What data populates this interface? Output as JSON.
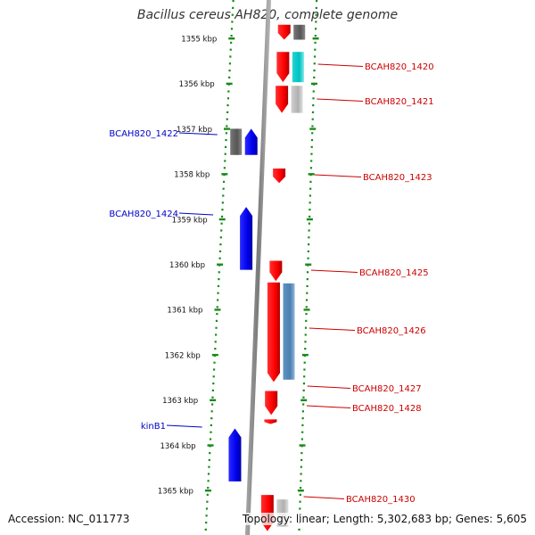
{
  "title": "Bacillus cereus AH820, complete genome",
  "accession": "Accession: NC_011773",
  "summary": "Topology: linear; Length: 5,302,683 bp; Genes: 5,605",
  "colors": {
    "forward_label": "#cc0000",
    "reverse_label": "#0000cc",
    "forward_gene": "#ff0000",
    "reverse_gene": "#0000ee",
    "dots": "#1a8a1a",
    "backbone": "#888888"
  },
  "ticks": [
    {
      "label": "1355 kbp",
      "pos": 1355
    },
    {
      "label": "1356 kbp",
      "pos": 1356
    },
    {
      "label": "1357 kbp",
      "pos": 1357
    },
    {
      "label": "1358 kbp",
      "pos": 1358
    },
    {
      "label": "1359 kbp",
      "pos": 1359
    },
    {
      "label": "1360 kbp",
      "pos": 1360
    },
    {
      "label": "1361 kbp",
      "pos": 1361
    },
    {
      "label": "1362 kbp",
      "pos": 1362
    },
    {
      "label": "1363 kbp",
      "pos": 1363
    },
    {
      "label": "1364 kbp",
      "pos": 1364
    },
    {
      "label": "1365 kbp",
      "pos": 1365
    }
  ],
  "genes": [
    {
      "strand": "+",
      "start": 1354.7,
      "end": 1355.03,
      "label": ""
    },
    {
      "strand": "+",
      "start": 1355.3,
      "end": 1355.97,
      "label": "BCAH820_1420"
    },
    {
      "strand": "+",
      "start": 1356.05,
      "end": 1356.65,
      "label": "BCAH820_1421"
    },
    {
      "strand": "-",
      "start": 1357.0,
      "end": 1357.58,
      "label": "BCAH820_1422"
    },
    {
      "strand": "+",
      "start": 1357.88,
      "end": 1358.2,
      "label": "BCAH820_1423"
    },
    {
      "strand": "-",
      "start": 1358.73,
      "end": 1360.12,
      "label": "BCAH820_1424"
    },
    {
      "strand": "+",
      "start": 1359.92,
      "end": 1360.37,
      "label": "BCAH820_1425"
    },
    {
      "strand": "+",
      "start": 1360.4,
      "end": 1362.6,
      "label": "BCAH820_1426"
    },
    {
      "strand": "+",
      "start": 1362.8,
      "end": 1363.33,
      "label": "BCAH820_1427"
    },
    {
      "strand": "+",
      "start": 1363.43,
      "end": 1363.53,
      "label": "BCAH820_1428"
    },
    {
      "strand": "-",
      "start": 1363.63,
      "end": 1364.8,
      "label": "kinB1"
    },
    {
      "strand": "+",
      "start": 1365.1,
      "end": 1365.9,
      "label": "BCAH820_1430"
    }
  ],
  "features": [
    {
      "type": "gray-dark",
      "start": 1354.7,
      "end": 1355.03
    },
    {
      "type": "cyan",
      "start": 1355.3,
      "end": 1355.97
    },
    {
      "type": "gray-light",
      "start": 1356.05,
      "end": 1356.65
    },
    {
      "type": "gray-dark",
      "start": 1357.0,
      "end": 1357.58
    },
    {
      "type": "steelblue",
      "start": 1360.42,
      "end": 1362.55
    },
    {
      "type": "gray-light",
      "start": 1365.2,
      "end": 1365.8
    }
  ]
}
